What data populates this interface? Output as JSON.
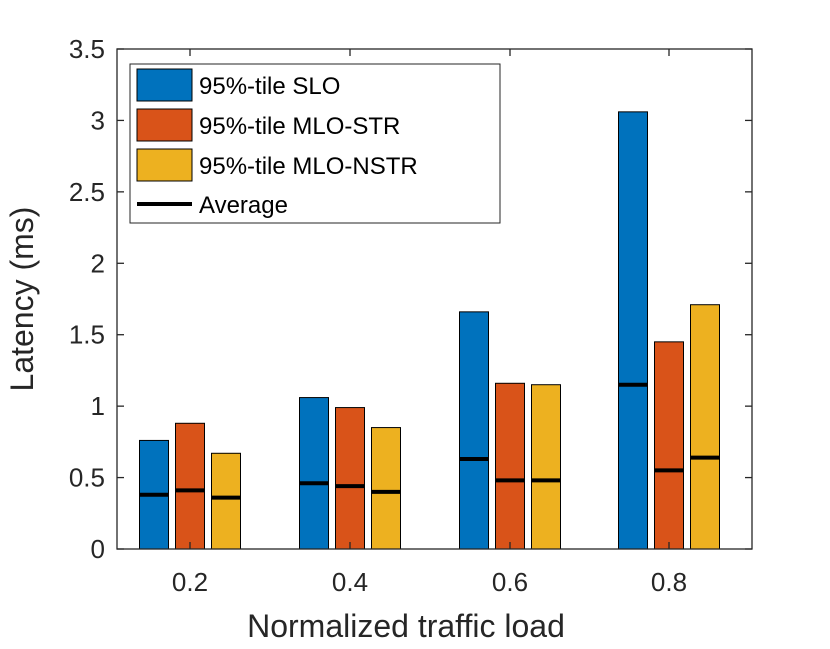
{
  "chart_data": {
    "type": "bar",
    "title": "",
    "xlabel": "Normalized traffic load",
    "ylabel": "Latency (ms)",
    "categories": [
      "0.2",
      "0.4",
      "0.6",
      "0.8"
    ],
    "ylim": [
      0,
      3.5
    ],
    "yticks": [
      "0",
      "0.5",
      "1",
      "1.5",
      "2",
      "2.5",
      "3",
      "3.5"
    ],
    "grid": false,
    "legend_position": "top-left",
    "series": [
      {
        "name": "95%-tile SLO",
        "color": "#0072BD",
        "values": [
          0.76,
          1.06,
          1.66,
          3.06
        ],
        "average": [
          0.38,
          0.46,
          0.63,
          1.15
        ]
      },
      {
        "name": "95%-tile MLO-STR",
        "color": "#D95319",
        "values": [
          0.88,
          0.99,
          1.16,
          1.45
        ],
        "average": [
          0.41,
          0.44,
          0.48,
          0.55
        ]
      },
      {
        "name": "95%-tile MLO-NSTR",
        "color": "#EDB120",
        "values": [
          0.67,
          0.85,
          1.15,
          1.71
        ],
        "average": [
          0.36,
          0.4,
          0.48,
          0.64
        ]
      }
    ],
    "average_label": "Average",
    "average_color": "#000000"
  }
}
